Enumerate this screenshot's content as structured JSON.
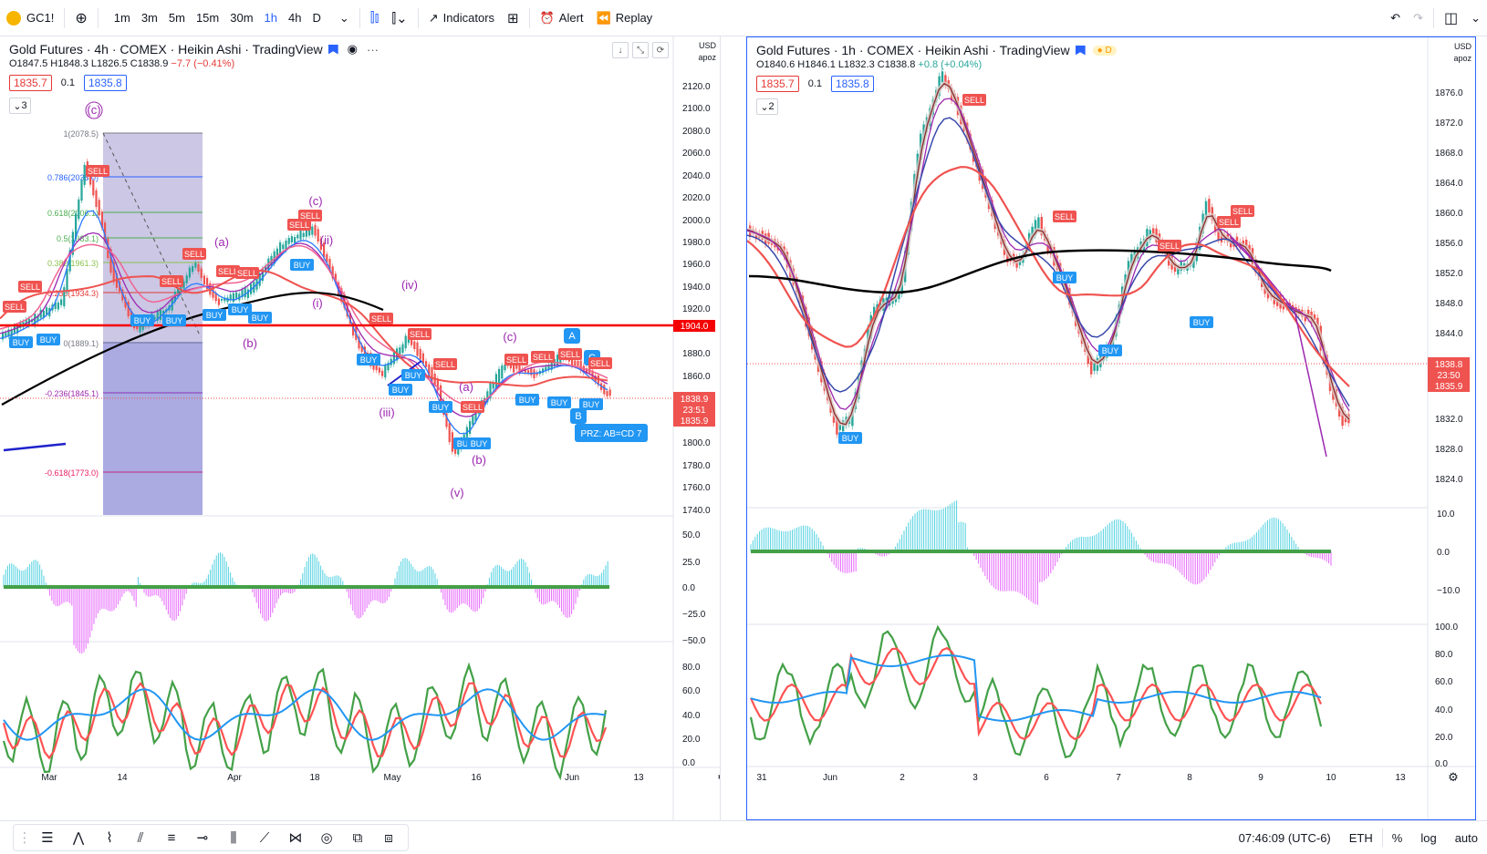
{
  "toolbar": {
    "symbol": "GC1!",
    "timeframes": [
      "1m",
      "3m",
      "5m",
      "15m",
      "30m",
      "1h",
      "4h",
      "D"
    ],
    "active_timeframe": "1h",
    "indicators_label": "Indicators",
    "alert_label": "Alert",
    "replay_label": "Replay"
  },
  "left_chart": {
    "title": "Gold Futures · 4h · COMEX · Heikin Ashi · TradingView",
    "ohlc": {
      "o": "O1847.5",
      "h": "H1848.3",
      "l": "L1826.5",
      "c": "C1838.9",
      "chg": "−7.7 (−0.41%)"
    },
    "bid": "1835.7",
    "spread": "0.1",
    "ask": "1835.8",
    "collapse_count": "3",
    "axis_currency": "USD",
    "axis_mode": "apoz",
    "price_ticks": [
      "2120.0",
      "2100.0",
      "2080.0",
      "2060.0",
      "2040.0",
      "2020.0",
      "2000.0",
      "1980.0",
      "1960.0",
      "1940.0",
      "1920.0",
      "1880.0",
      "1860.0",
      "1800.0",
      "1780.0",
      "1760.0",
      "1740.0"
    ],
    "hline_label": "1904.0",
    "last_price": "1838.9",
    "countdown": "23:51",
    "last_bid": "1835.9",
    "osc1_ticks": [
      "50.0",
      "25.0",
      "0.0",
      "−25.0",
      "−50.0"
    ],
    "osc2_ticks": [
      "80.0",
      "60.0",
      "40.0",
      "20.0",
      "0.0"
    ],
    "time_labels": [
      "Mar",
      "14",
      "Apr",
      "18",
      "May",
      "16",
      "Jun",
      "13"
    ],
    "fib_labels": [
      "1(2078.5)",
      "0.786(2038.0)",
      "0.618(2006.1)",
      "0.5(1983.1)",
      "0.382(1961.3)",
      "0.236(1934.3)",
      "0(1889.1)",
      "-0.236(1845.1)",
      "-0.618(1773.0)"
    ],
    "wave_labels": [
      "(c)",
      "(a)",
      "(c)",
      "(ii)",
      "(i)",
      "(b)",
      "(iv)",
      "(iii)",
      "(a)",
      "(c)",
      "(b)",
      "(v)"
    ],
    "pattern_labels": [
      "A",
      "C",
      "B"
    ],
    "prz_label": "PRZ: AB=CD 7",
    "sell_label": "SELL",
    "buy_label": "BUY"
  },
  "right_chart": {
    "title": "Gold Futures · 1h · COMEX · Heikin Ashi · TradingView",
    "ohlc": {
      "o": "O1840.6",
      "h": "H1846.1",
      "l": "L1832.3",
      "c": "C1838.8",
      "chg": "+0.8 (+0.04%)"
    },
    "bid": "1835.7",
    "spread": "0.1",
    "ask": "1835.8",
    "collapse_count": "2",
    "session_badge": "D",
    "axis_currency": "USD",
    "axis_mode": "apoz",
    "price_ticks": [
      "1876.0",
      "1872.0",
      "1868.0",
      "1864.0",
      "1860.0",
      "1856.0",
      "1852.0",
      "1848.0",
      "1844.0",
      "1840.0",
      "1832.0",
      "1828.0",
      "1824.0"
    ],
    "last_price": "1838.8",
    "countdown": "23:50",
    "last_bid": "1835.9",
    "osc1_ticks": [
      "10.0",
      "0.0",
      "−10.0"
    ],
    "osc2_ticks": [
      "100.0",
      "80.0",
      "60.0",
      "40.0",
      "20.0",
      "0.0"
    ],
    "time_labels": [
      "31",
      "Jun",
      "2",
      "3",
      "6",
      "7",
      "8",
      "9",
      "10",
      "13"
    ],
    "sell_label": "SELL",
    "buy_label": "BUY"
  },
  "statusbar": {
    "time": "07:46:09 (UTC-6)",
    "session": "ETH",
    "percent": "%",
    "log": "log",
    "auto": "auto"
  },
  "colors": {
    "up": "#26a69a",
    "down": "#ef5350",
    "accent": "#2962ff",
    "hline": "#f50000",
    "wave": "#9c27b0"
  }
}
